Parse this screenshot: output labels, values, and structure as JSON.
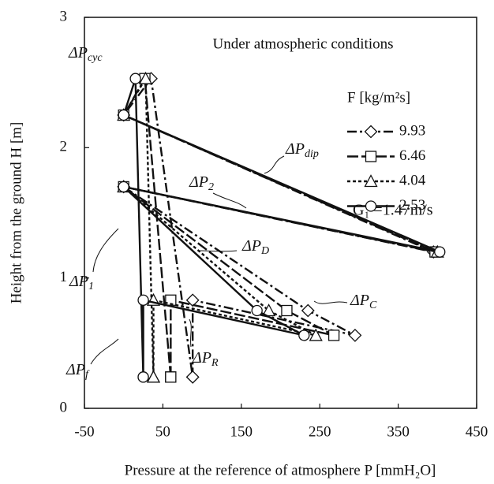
{
  "chart_data": {
    "type": "line",
    "title": "Under atmospheric conditions",
    "x_label": "Pressure at the reference of atmosphere P [mmH₂O]",
    "y_label": "Height from the ground H [m]",
    "legend_title": "F [kg/m²s]",
    "xlim": [
      -50,
      450
    ],
    "xticks": [
      -50,
      50,
      150,
      250,
      350,
      450
    ],
    "ylim": [
      0,
      3
    ],
    "yticks": [
      0,
      1,
      2,
      3
    ],
    "annotations": [
      {
        "text": "ΔP",
        "sub": "cyc"
      },
      {
        "text": "ΔP",
        "sub": "dip"
      },
      {
        "text": "ΔP",
        "sub": "2"
      },
      {
        "text": "ΔP",
        "sub": "D"
      },
      {
        "text": "ΔP",
        "sub": "C"
      },
      {
        "text": "ΔP",
        "sub": "1"
      },
      {
        "text": "ΔP",
        "sub": "R"
      },
      {
        "text": "ΔP",
        "sub": "f"
      }
    ],
    "note": "G₁ =1.47m/s",
    "series": [
      {
        "name": "9.93",
        "color": "#111111",
        "marker": "diamond",
        "line_style": "dashdot",
        "x": [
          88,
          88,
          295,
          235,
          0,
          395,
          0,
          35,
          88
        ],
        "values": [
          0.24,
          0.83,
          0.56,
          0.75,
          1.7,
          1.2,
          2.25,
          2.53,
          0.24
        ]
      },
      {
        "name": "6.46",
        "color": "#111111",
        "marker": "square",
        "line_style": "longdash",
        "x": [
          60,
          60,
          268,
          208,
          0,
          397,
          0,
          27,
          60
        ],
        "values": [
          0.24,
          0.83,
          0.56,
          0.75,
          1.7,
          1.2,
          2.25,
          2.53,
          0.24
        ]
      },
      {
        "name": "4.04",
        "color": "#111111",
        "marker": "triangle",
        "line_style": "dotted",
        "x": [
          38,
          38,
          245,
          185,
          0,
          400,
          0,
          28,
          38
        ],
        "values": [
          0.24,
          0.83,
          0.56,
          0.75,
          1.7,
          1.2,
          2.25,
          2.53,
          0.24
        ]
      },
      {
        "name": "2.53",
        "color": "#111111",
        "marker": "circle",
        "line_style": "solid",
        "x": [
          25,
          25,
          230,
          170,
          0,
          403,
          0,
          15,
          25
        ],
        "values": [
          0.24,
          0.83,
          0.56,
          0.75,
          1.7,
          1.2,
          2.25,
          2.53,
          0.24
        ]
      }
    ]
  }
}
